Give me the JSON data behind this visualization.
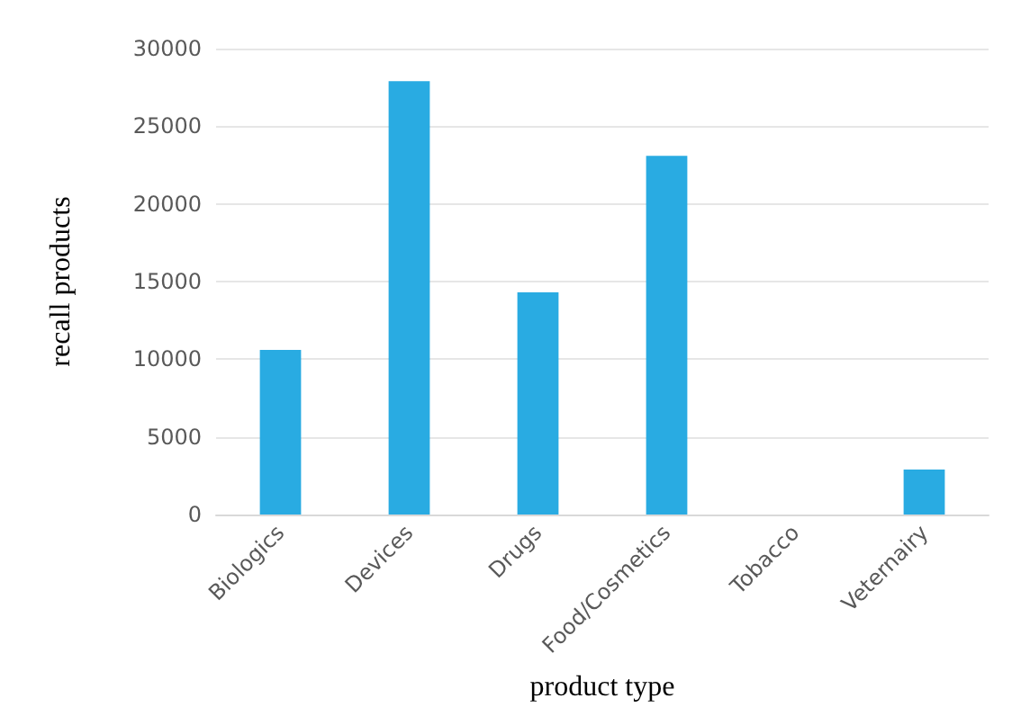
{
  "chart_data": {
    "type": "bar",
    "xlabel": "product type",
    "ylabel": "recall products",
    "categories": [
      "Biologics",
      "Devices",
      "Drugs",
      "Food/Cosmetics",
      "Tobacco",
      "Veternairy"
    ],
    "values": [
      10600,
      27900,
      14300,
      23100,
      0,
      2900
    ],
    "color": "#29abe2",
    "ylim": [
      0,
      30000
    ],
    "yticks": [
      0,
      5000,
      10000,
      15000,
      20000,
      25000,
      30000
    ],
    "grid": "y"
  }
}
